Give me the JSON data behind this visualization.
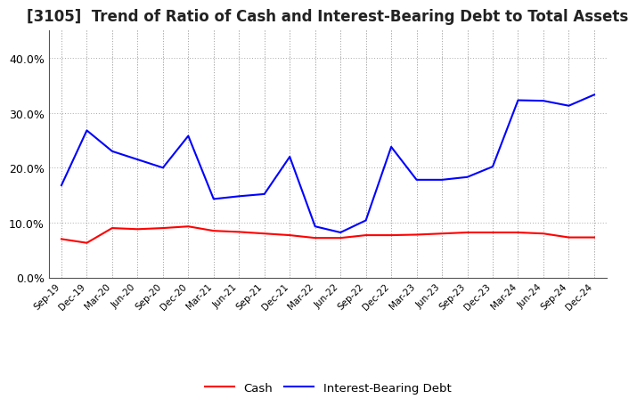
{
  "title": "[3105]  Trend of Ratio of Cash and Interest-Bearing Debt to Total Assets",
  "x_labels": [
    "Sep-19",
    "Dec-19",
    "Mar-20",
    "Jun-20",
    "Sep-20",
    "Dec-20",
    "Mar-21",
    "Jun-21",
    "Sep-21",
    "Dec-21",
    "Mar-22",
    "Jun-22",
    "Sep-22",
    "Dec-22",
    "Mar-23",
    "Jun-23",
    "Sep-23",
    "Dec-23",
    "Mar-24",
    "Jun-24",
    "Sep-24",
    "Dec-24"
  ],
  "cash": [
    0.07,
    0.063,
    0.09,
    0.088,
    0.09,
    0.093,
    0.085,
    0.083,
    0.08,
    0.077,
    0.072,
    0.072,
    0.077,
    0.077,
    0.078,
    0.08,
    0.082,
    0.082,
    0.082,
    0.08,
    0.073,
    0.073
  ],
  "interest_bearing_debt": [
    0.168,
    0.268,
    0.23,
    0.215,
    0.2,
    0.258,
    0.143,
    0.148,
    0.152,
    0.22,
    0.093,
    0.082,
    0.104,
    0.238,
    0.178,
    0.178,
    0.183,
    0.202,
    0.323,
    0.322,
    0.313,
    0.333
  ],
  "cash_color": "#ff0000",
  "debt_color": "#0000ff",
  "background_color": "#ffffff",
  "grid_color": "#aaaaaa",
  "ylim": [
    0.0,
    0.45
  ],
  "yticks": [
    0.0,
    0.1,
    0.2,
    0.3,
    0.4
  ],
  "title_fontsize": 12,
  "legend_labels": [
    "Cash",
    "Interest-Bearing Debt"
  ]
}
